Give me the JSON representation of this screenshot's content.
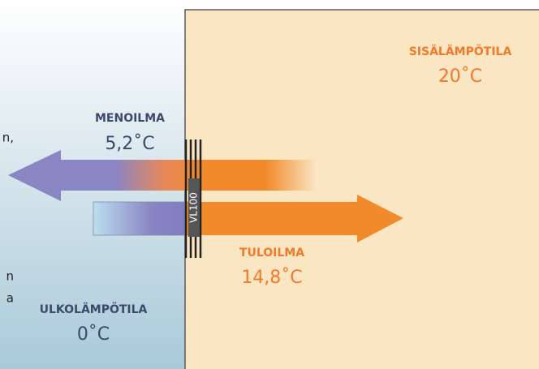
{
  "indoor": {
    "label": "SISÄLÄMPÖTILA",
    "temperature": "20˚C"
  },
  "exhaust": {
    "label": "MENOILMA",
    "temperature": "5,2˚C"
  },
  "supply": {
    "label": "TULOILMA",
    "temperature": "14,8˚C"
  },
  "outdoor": {
    "label": "ULKOLÄMPÖTILA",
    "temperature": "0˚C"
  },
  "device": "VL100",
  "cropped_text": [
    "n,",
    "n",
    "a"
  ]
}
